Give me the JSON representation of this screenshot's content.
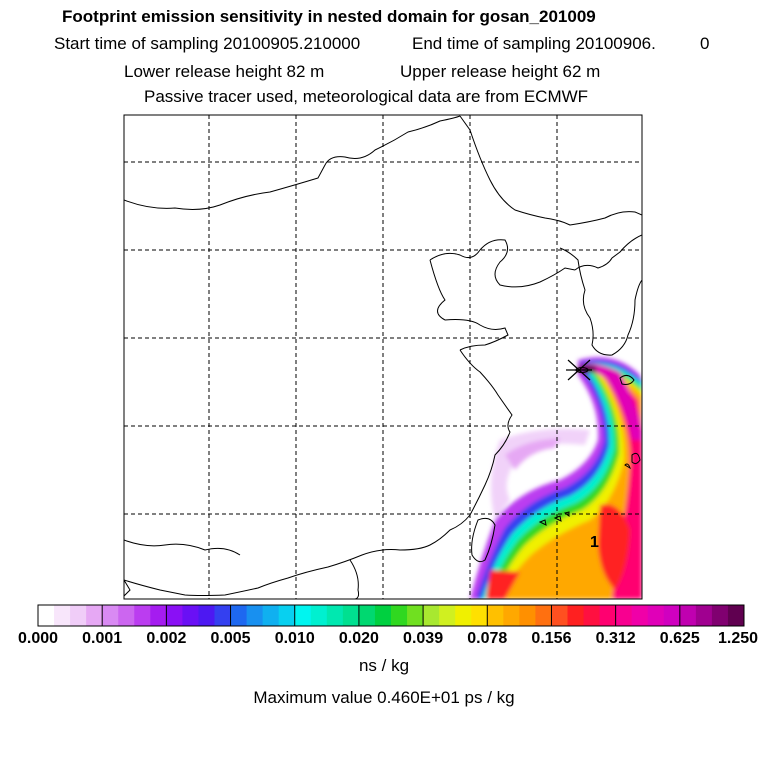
{
  "header": {
    "title": "Footprint emission sensitivity in nested domain for gosan_201009",
    "start_time": "Start time of sampling 20100905.210000",
    "end_time": "End time of sampling 20100906.",
    "end_time_suffix": "0",
    "lower_release": "Lower release height   82 m",
    "upper_release": "Upper release height   62 m",
    "tracer_info": "Passive tracer used, meteorological data are from ECMWF"
  },
  "map": {
    "release_label": "1",
    "colors": {
      "coastline": "#000000",
      "grid": "#000000"
    }
  },
  "colorbar": {
    "tick_labels": [
      "0.000",
      "0.001",
      "0.002",
      "0.005",
      "0.010",
      "0.020",
      "0.039",
      "0.078",
      "0.156",
      "0.312",
      "0.625",
      "1.250"
    ],
    "colors": [
      "#ffffff",
      "#f8e6fb",
      "#f0cdf8",
      "#e6a8f4",
      "#d98af3",
      "#cc66f0",
      "#bb3df0",
      "#a51cf0",
      "#8a10f5",
      "#6a10f5",
      "#4d18f2",
      "#3440f0",
      "#1e68f0",
      "#1890f0",
      "#10b0f0",
      "#08d0f0",
      "#00f5f0",
      "#00f0d0",
      "#00e8b0",
      "#00e090",
      "#00d870",
      "#00d040",
      "#30d820",
      "#70e020",
      "#a8e830",
      "#d0f020",
      "#f0f000",
      "#ffe000",
      "#ffc000",
      "#ffa800",
      "#ff9000",
      "#ff7010",
      "#ff5020",
      "#ff2020",
      "#ff1040",
      "#ff0070",
      "#f80090",
      "#f000a8",
      "#e000b8",
      "#d000c0",
      "#c000b0",
      "#a00090",
      "#800070",
      "#600050"
    ],
    "unit": "ns / kg",
    "max_value": "Maximum value  0.460E+01 ps / kg"
  }
}
